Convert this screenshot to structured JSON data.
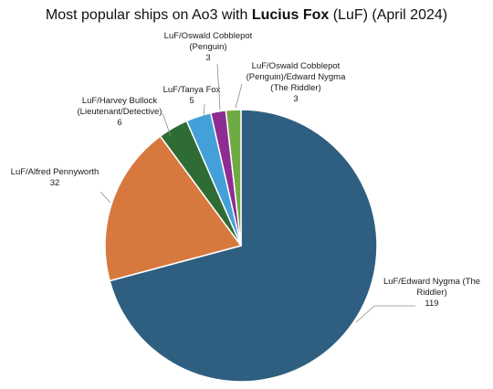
{
  "chart_data": {
    "type": "pie",
    "title": {
      "before": "Most popular ships on Ao3 with ",
      "bold": "Lucius Fox",
      "after": " (LuF) (April 2024)"
    },
    "slices": [
      {
        "label": [
          "LuF/Edward Nygma (The",
          "Riddler)"
        ],
        "value": 119,
        "color": "#2f5f80"
      },
      {
        "label": [
          "LuF/Alfred Pennyworth"
        ],
        "value": 32,
        "color": "#d7793f"
      },
      {
        "label": [
          "LuF/Harvey Bullock",
          "(Lieutenant/Detective)"
        ],
        "value": 6,
        "color": "#2f6b34"
      },
      {
        "label": [
          "LuF/Tanya Fox"
        ],
        "value": 5,
        "color": "#44a0d8"
      },
      {
        "label": [
          "LuF/Oswald Cobblepot",
          "(Penguin)"
        ],
        "value": 3,
        "color": "#8e2c92"
      },
      {
        "label": [
          "LuF/Oswald Cobblepot",
          "(Penguin)/Edward Nygma",
          "(The Riddler)"
        ],
        "value": 3,
        "color": "#6eab45"
      }
    ]
  }
}
